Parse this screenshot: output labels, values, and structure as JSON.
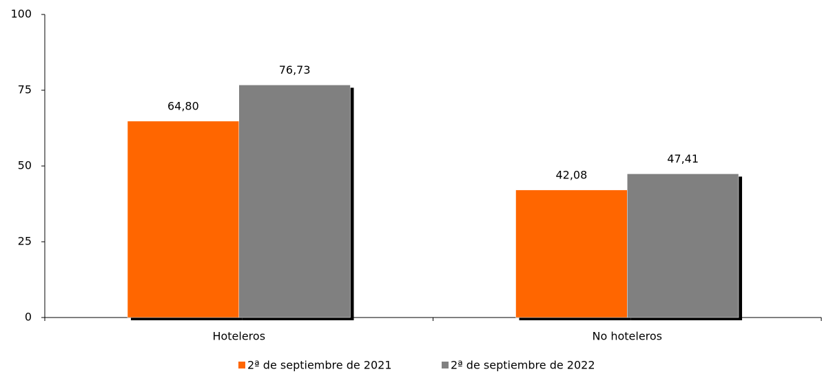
{
  "chart_data": {
    "type": "bar",
    "categories": [
      "Hoteleros",
      "No hoteleros"
    ],
    "series": [
      {
        "name": "2ª de septiembre de 2021",
        "color": "#ff6600",
        "values": [
          64.8,
          42.08
        ],
        "value_labels": [
          "64,80",
          "42,08"
        ]
      },
      {
        "name": "2ª de septiembre de 2022",
        "color": "#808080",
        "values": [
          76.73,
          47.41
        ],
        "value_labels": [
          "76,73",
          "47,41"
        ]
      }
    ],
    "ylim": [
      0,
      100
    ],
    "yticks": [
      0,
      25,
      50,
      75,
      100
    ],
    "grid": false,
    "legend": "bottom"
  }
}
